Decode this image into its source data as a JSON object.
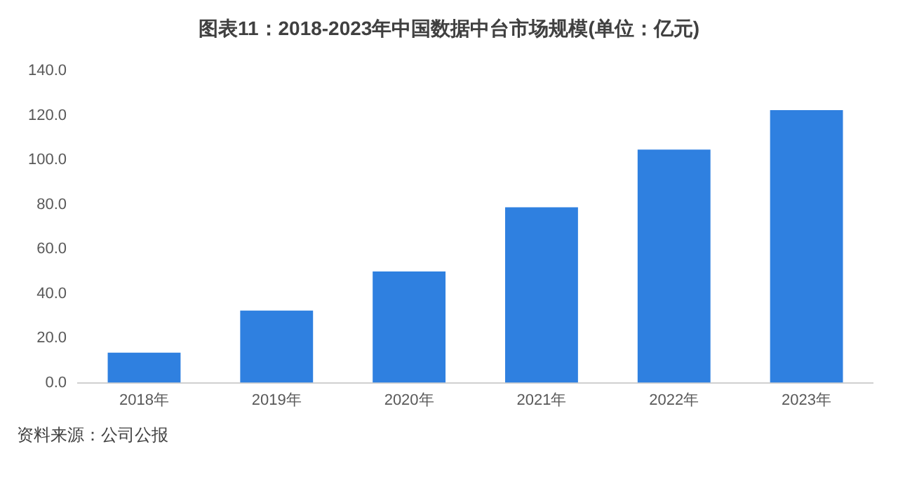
{
  "chart_data": {
    "type": "bar",
    "title": "图表11：2018-2023年中国数据中台市场规模(单位：亿元)",
    "categories": [
      "2018年",
      "2019年",
      "2020年",
      "2021年",
      "2022年",
      "2023年"
    ],
    "values": [
      13.5,
      32.4,
      50.0,
      78.8,
      104.7,
      122.4
    ],
    "color": "#2f80e0",
    "ylim": [
      0,
      140
    ],
    "yticks": [
      {
        "value": 0,
        "label": "0.0"
      },
      {
        "value": 20,
        "label": "20.0"
      },
      {
        "value": 40,
        "label": "40.0"
      },
      {
        "value": 60,
        "label": "60.0"
      },
      {
        "value": 80,
        "label": "80.0"
      },
      {
        "value": 100,
        "label": "100.0"
      },
      {
        "value": 120,
        "label": "120.0"
      },
      {
        "value": 140,
        "label": "140.0"
      }
    ],
    "grid": false,
    "legend": false,
    "annotations": [
      "资料来源：公司公报"
    ]
  }
}
